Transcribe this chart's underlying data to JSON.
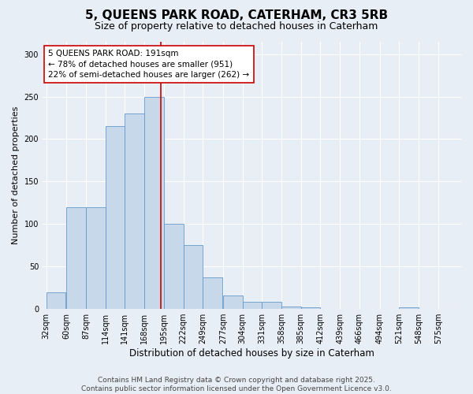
{
  "title1": "5, QUEENS PARK ROAD, CATERHAM, CR3 5RB",
  "title2": "Size of property relative to detached houses in Caterham",
  "xlabel": "Distribution of detached houses by size in Caterham",
  "ylabel": "Number of detached properties",
  "bins_left": [
    32,
    60,
    87,
    114,
    141,
    168,
    195,
    222,
    249,
    277,
    304,
    331,
    358,
    385,
    412,
    439,
    466,
    494,
    521,
    548,
    575
  ],
  "values": [
    20,
    120,
    120,
    215,
    230,
    250,
    100,
    75,
    37,
    16,
    8,
    8,
    3,
    2,
    0,
    0,
    0,
    0,
    2,
    0,
    0
  ],
  "bar_color": "#c8d8eb",
  "bar_edge_color": "#6699cc",
  "vline_x": 191,
  "vline_color": "#cc0000",
  "annotation_text": "5 QUEENS PARK ROAD: 191sqm\n← 78% of detached houses are smaller (951)\n22% of semi-detached houses are larger (262) →",
  "annotation_box_color": "#ffffff",
  "annotation_box_edge_color": "#cc0000",
  "ylim": [
    0,
    315
  ],
  "yticks": [
    0,
    50,
    100,
    150,
    200,
    250,
    300
  ],
  "background_color": "#e8eef5",
  "plot_bg_color": "#e8eef5",
  "grid_color": "#ffffff",
  "footer_text": "Contains HM Land Registry data © Crown copyright and database right 2025.\nContains public sector information licensed under the Open Government Licence v3.0.",
  "title1_fontsize": 11,
  "title2_fontsize": 9,
  "xlabel_fontsize": 8.5,
  "ylabel_fontsize": 8,
  "tick_fontsize": 7,
  "annotation_fontsize": 7.5,
  "footer_fontsize": 6.5
}
